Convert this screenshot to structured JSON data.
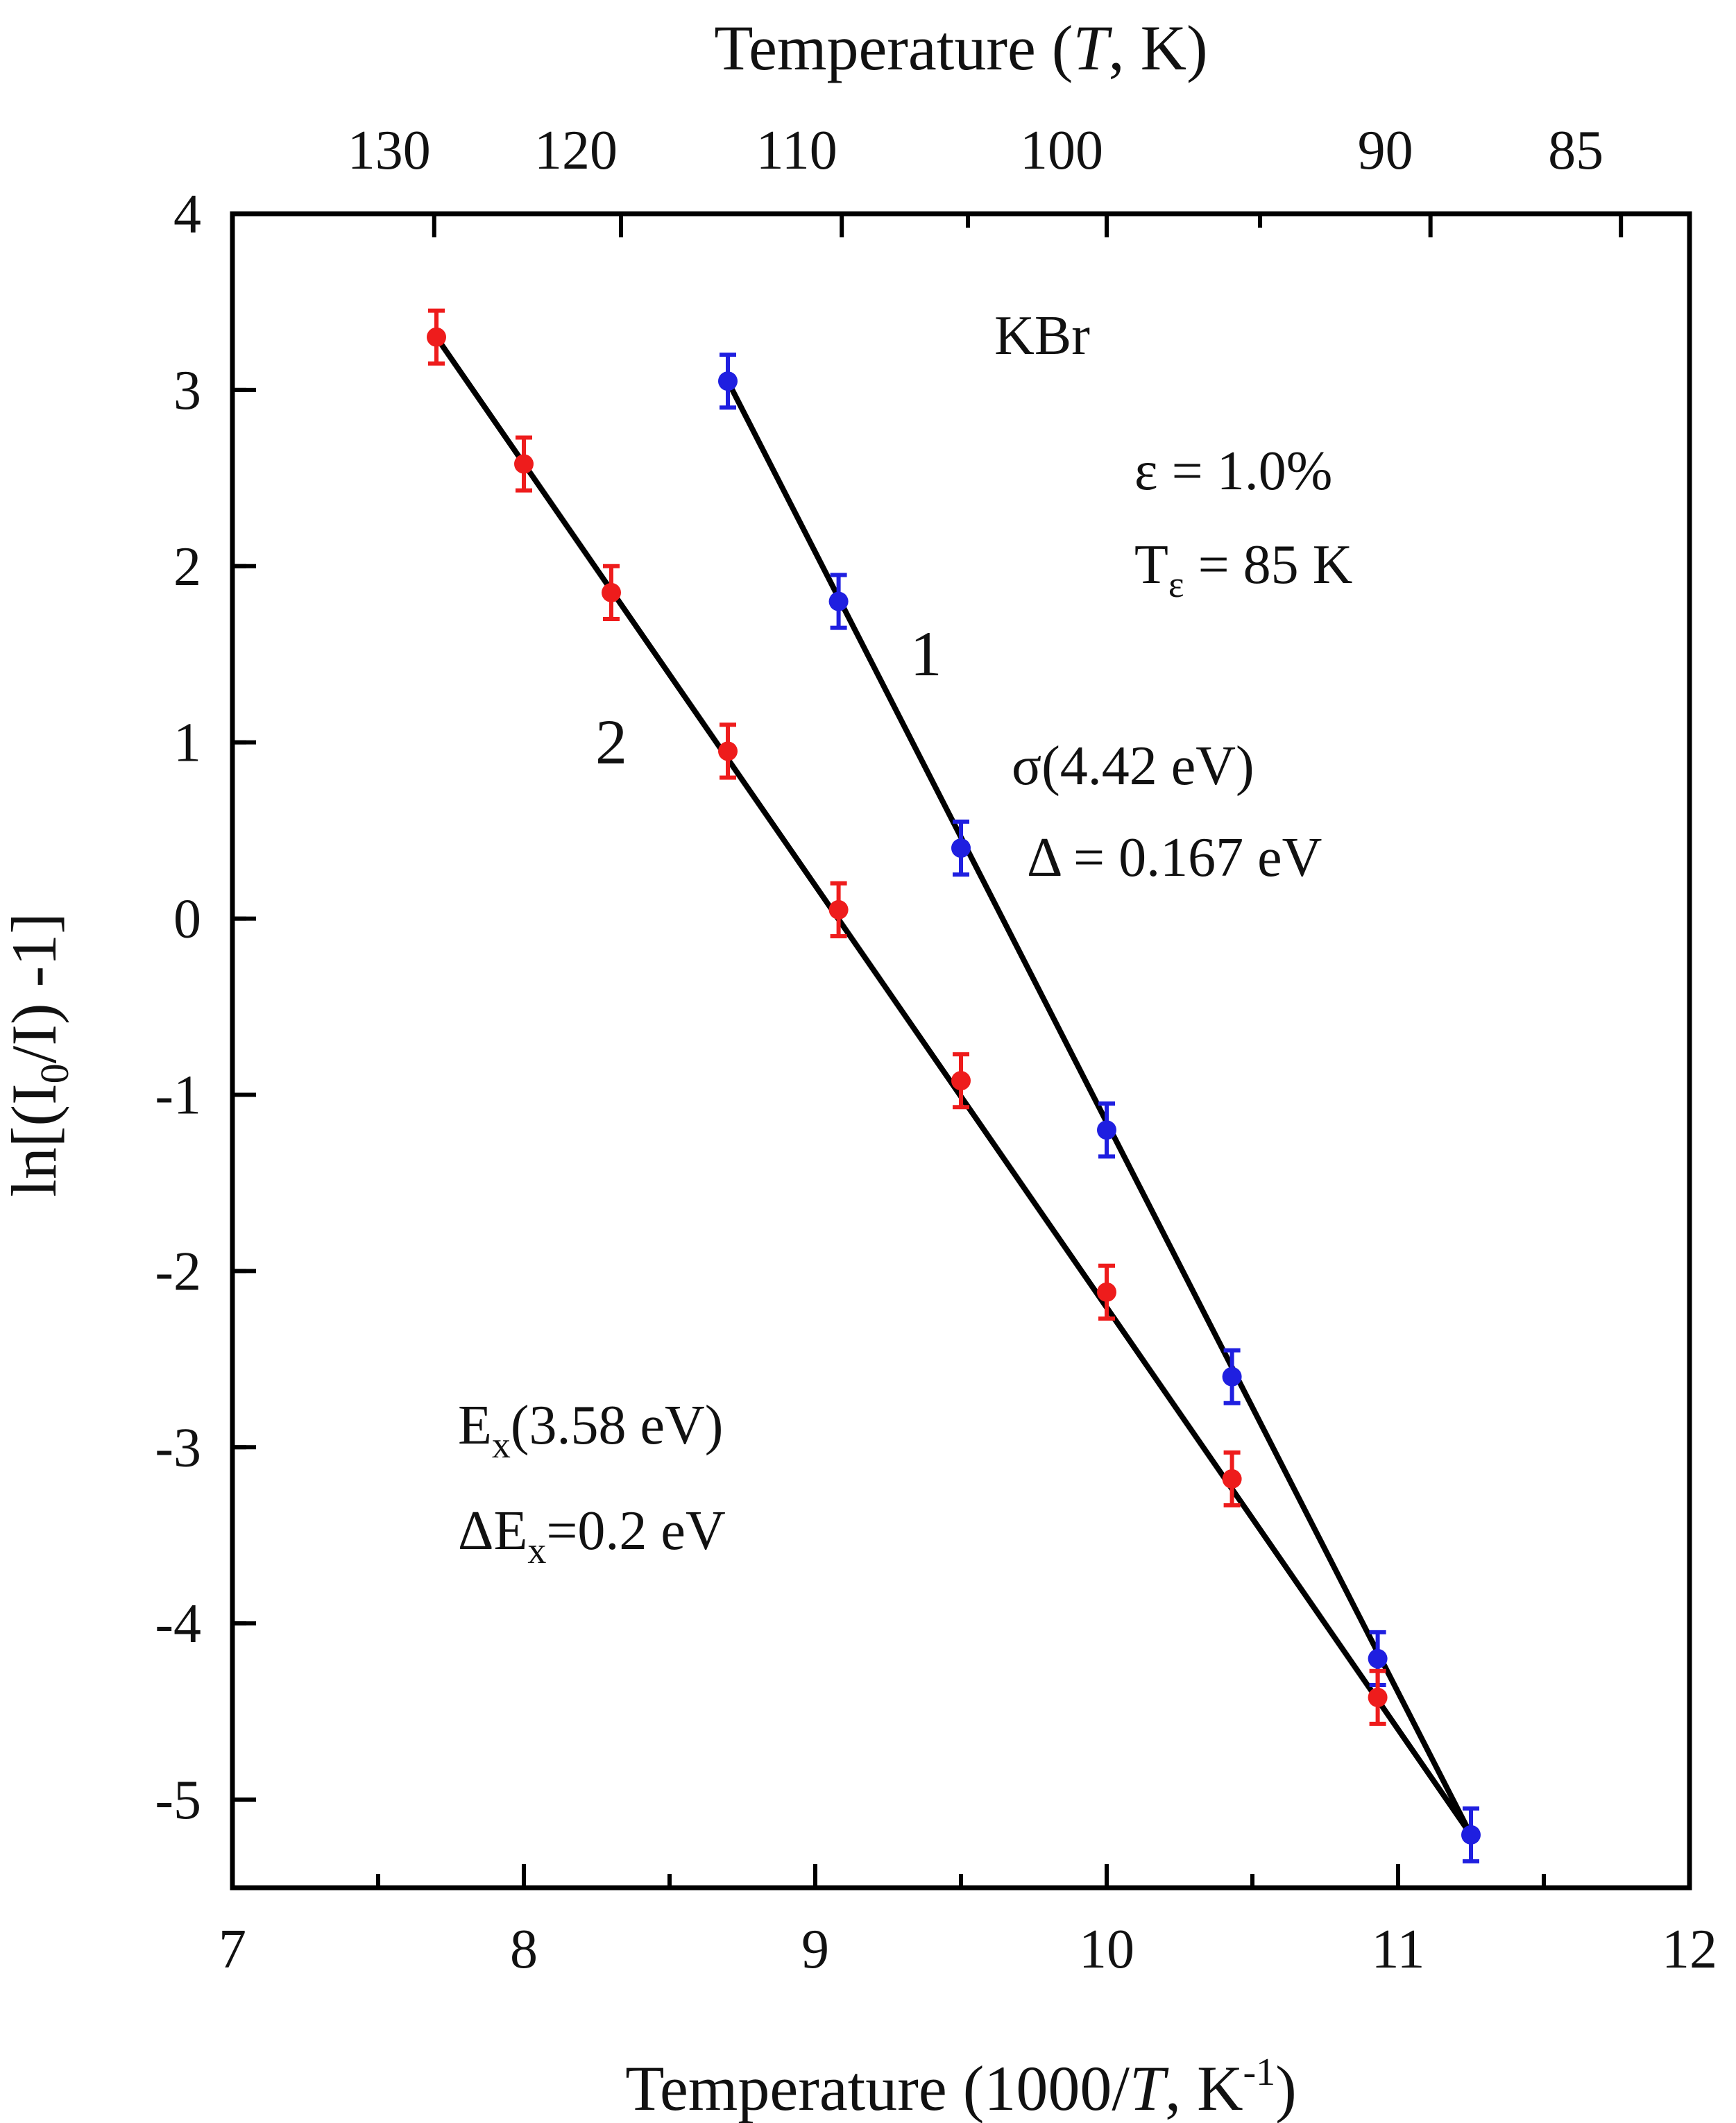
{
  "chart_data": {
    "type": "scatter",
    "title": "",
    "xlabel": "Temperature (1000/T, K⁻¹)",
    "xlabel_parts": {
      "prefix": "Temperature (1000/",
      "italic": "T",
      "middle": ", K",
      "sup": "-1",
      "suffix": ")"
    },
    "ylabel": "ln[(I₀/I) -1]",
    "ylabel_parts": {
      "prefix": "ln[(I",
      "sub": "0",
      "suffix": "/I) -1]"
    },
    "top_xlabel": "Temperature (T, K)",
    "top_xlabel_parts": {
      "prefix": "Temperature (",
      "italic": "T",
      "suffix": ", K)"
    },
    "xlim": [
      7,
      12
    ],
    "ylim": [
      -5.5,
      4
    ],
    "x_ticks": [
      7,
      8,
      9,
      10,
      11,
      12
    ],
    "x_tick_labels": [
      "7",
      "8",
      "9",
      "10",
      "11",
      "12"
    ],
    "x_minor_step": 0.5,
    "y_ticks": [
      -5,
      -4,
      -3,
      -2,
      -1,
      0,
      1,
      2,
      3,
      4
    ],
    "y_tick_labels": [
      "-5",
      "-4",
      "-3",
      "-2",
      "-1",
      "0",
      "1",
      "2",
      "3",
      "4"
    ],
    "y_minor_step": 0.5,
    "top_ticks_T": [
      130,
      120,
      110,
      100,
      90,
      85
    ],
    "top_tick_labels": [
      "130",
      "120",
      "110",
      "100",
      "90",
      "85"
    ],
    "top_minor_ticks_T": [
      105,
      95
    ],
    "grid": false,
    "series": [
      {
        "name": "1",
        "color": "#1f1fe0",
        "x": [
          8.7,
          9.08,
          9.5,
          10.0,
          10.43,
          10.93,
          11.25
        ],
        "y": [
          3.05,
          1.8,
          0.4,
          -1.2,
          -2.6,
          -4.2,
          -5.2
        ],
        "err": [
          0.15,
          0.15,
          0.15,
          0.15,
          0.15,
          0.15,
          0.15
        ]
      },
      {
        "name": "2",
        "color": "#ee1c1c",
        "x": [
          7.7,
          8.0,
          8.3,
          8.7,
          9.08,
          9.5,
          10.0,
          10.43,
          10.93
        ],
        "y": [
          3.3,
          2.58,
          1.85,
          0.95,
          0.05,
          -0.92,
          -2.12,
          -3.18,
          -4.42
        ],
        "err": [
          0.15,
          0.15,
          0.15,
          0.15,
          0.15,
          0.15,
          0.15,
          0.15,
          0.15
        ]
      }
    ],
    "fit_lines": [
      {
        "series": "1",
        "color": "#000000",
        "points": [
          [
            8.7,
            3.05
          ],
          [
            11.25,
            -5.2
          ]
        ]
      },
      {
        "series": "2",
        "color": "#000000",
        "points": [
          [
            7.7,
            3.3
          ],
          [
            11.25,
            -5.2
          ]
        ]
      }
    ],
    "curve_labels": [
      {
        "text": "1",
        "x": 9.38,
        "y": 1.38
      },
      {
        "text": "2",
        "x": 8.3,
        "y": 0.88
      }
    ],
    "annotations": {
      "material": "KBr",
      "strain": "ε = 1.0%",
      "temp_strain": {
        "base": "T",
        "sub": "ε",
        "rest": " = 85 K"
      },
      "sigma": "σ(4.42 eV)",
      "delta": "Δ = 0.167 eV",
      "ex_label": {
        "base": "E",
        "sub": "x",
        "rest": "(3.58 eV)"
      },
      "dex_label": {
        "base": "ΔE",
        "sub": "x",
        "rest": "=0.2 eV"
      }
    }
  }
}
